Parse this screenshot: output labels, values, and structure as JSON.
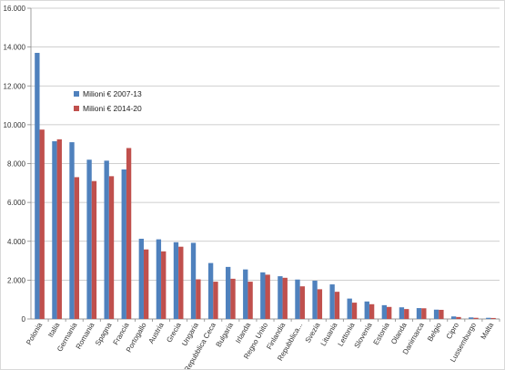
{
  "chart_data": {
    "type": "bar",
    "title": "",
    "xlabel": "",
    "ylabel": "",
    "ylim": [
      0,
      16000
    ],
    "yticks": [
      "0",
      "2.000",
      "4.000",
      "6.000",
      "8.000",
      "10.000",
      "12.000",
      "14.000",
      "16.000"
    ],
    "grid": true,
    "legend_position": "left",
    "categories": [
      "Polonia",
      "Italia",
      "Germania",
      "Romania",
      "Spagna",
      "Francia",
      "Portogallo",
      "Austria",
      "Grecia",
      "Ungaria",
      "Repubblica Ceca",
      "Bulgaria",
      "Irlanda",
      "Regno Unito",
      "Finlandia",
      "Repubblica...",
      "Svezia",
      "Lituania",
      "Lettonia",
      "Slovenia",
      "Estonia",
      "Olanda",
      "Danimarca",
      "Belgio",
      "Cipro",
      "Lussemburgo",
      "Malta"
    ],
    "series": [
      {
        "name": "Milioni  € 2007-13",
        "color": "#4f81bd",
        "values": [
          13700,
          9150,
          9100,
          8200,
          8150,
          7700,
          4130,
          4100,
          3950,
          3920,
          2880,
          2680,
          2550,
          2400,
          2200,
          2030,
          1970,
          1780,
          1050,
          900,
          710,
          600,
          560,
          480,
          130,
          80,
          60
        ]
      },
      {
        "name": "Milioni  € 2014-20",
        "color": "#c0504d",
        "values": [
          9750,
          9250,
          7300,
          7100,
          7350,
          8800,
          3580,
          3480,
          3720,
          2040,
          1920,
          2070,
          1920,
          2280,
          2120,
          1680,
          1530,
          1400,
          840,
          760,
          620,
          510,
          550,
          470,
          100,
          60,
          50
        ]
      }
    ]
  }
}
